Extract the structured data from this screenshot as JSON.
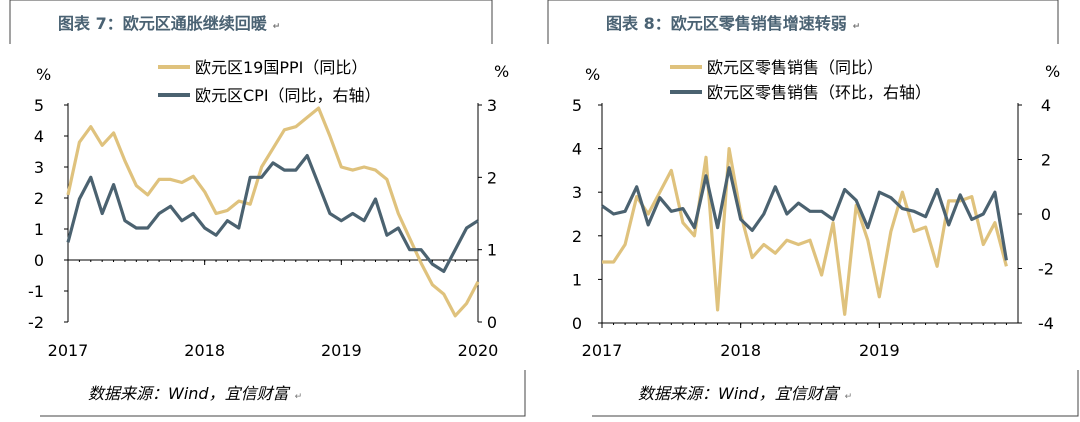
{
  "colors": {
    "gold": "#dfc27d",
    "slate": "#4b6270",
    "title": "#4a6273"
  },
  "edit_mark": "↵",
  "charts": [
    {
      "title": "图表 7：欧元区通胀继续回暖",
      "source": "数据来源：Wind，宜信财富",
      "left_unit": "%",
      "right_unit": "%",
      "legend": [
        "欧元区19国PPI（同比）",
        "欧元区CPI（同比，右轴）"
      ]
    },
    {
      "title": "图表 8：欧元区零售销售增速转弱",
      "source": "数据来源：Wind，宜信财富",
      "left_unit": "%",
      "right_unit": "%",
      "legend": [
        "欧元区零售销售（同比）",
        "欧元区零售销售（环比，右轴）"
      ]
    }
  ],
  "chart_data": [
    {
      "type": "line",
      "title": "图表 7：欧元区通胀继续回暖",
      "x_start": "2017-01",
      "x_ticks": [
        "2017",
        "2018",
        "2019",
        "2020"
      ],
      "y_left": {
        "label": "%",
        "lim": [
          -2,
          5
        ],
        "ticks": [
          -2,
          -1,
          0,
          1,
          2,
          3,
          4,
          5
        ]
      },
      "y_right": {
        "label": "%",
        "lim": [
          0,
          3
        ],
        "ticks": [
          0,
          1,
          2,
          3
        ]
      },
      "series": [
        {
          "name": "欧元区19国PPI（同比）",
          "axis": "left",
          "color": "#dfc27d",
          "values": [
            2.1,
            3.8,
            4.3,
            3.7,
            4.1,
            3.2,
            2.4,
            2.1,
            2.6,
            2.6,
            2.5,
            2.7,
            2.2,
            1.5,
            1.6,
            1.9,
            1.8,
            3.0,
            3.6,
            4.2,
            4.3,
            4.6,
            4.9,
            4.0,
            3.0,
            2.9,
            3.0,
            2.9,
            2.6,
            1.5,
            0.7,
            -0.1,
            -0.8,
            -1.1,
            -1.8,
            -1.4,
            -0.7
          ]
        },
        {
          "name": "欧元区CPI（同比，右轴）",
          "axis": "right",
          "color": "#4b6270",
          "values": [
            1.1,
            1.7,
            2.0,
            1.5,
            1.9,
            1.4,
            1.3,
            1.3,
            1.5,
            1.6,
            1.4,
            1.5,
            1.3,
            1.2,
            1.4,
            1.3,
            2.0,
            2.0,
            2.2,
            2.1,
            2.1,
            2.3,
            1.9,
            1.5,
            1.4,
            1.5,
            1.4,
            1.7,
            1.2,
            1.3,
            1.0,
            1.0,
            0.8,
            0.7,
            1.0,
            1.3,
            1.4
          ]
        }
      ]
    },
    {
      "type": "line",
      "title": "图表 8：欧元区零售销售增速转弱",
      "x_start": "2017-01",
      "x_ticks": [
        "2017",
        "2018",
        "2019"
      ],
      "y_left": {
        "label": "%",
        "lim": [
          0,
          5
        ],
        "ticks": [
          0,
          1,
          2,
          3,
          4,
          5
        ]
      },
      "y_right": {
        "label": "%",
        "lim": [
          -4,
          4
        ],
        "ticks": [
          -4,
          -2,
          0,
          2,
          4
        ]
      },
      "series": [
        {
          "name": "欧元区零售销售（同比）",
          "axis": "left",
          "color": "#dfc27d",
          "values": [
            1.4,
            1.4,
            1.8,
            2.9,
            2.5,
            3.0,
            3.5,
            2.3,
            2.0,
            3.8,
            0.3,
            4.0,
            2.5,
            1.5,
            1.8,
            1.6,
            1.9,
            1.8,
            1.9,
            1.1,
            2.3,
            0.2,
            2.7,
            1.9,
            0.6,
            2.1,
            3.0,
            2.1,
            2.2,
            1.3,
            2.8,
            2.8,
            2.9,
            1.8,
            2.3,
            1.3
          ]
        },
        {
          "name": "欧元区零售销售（环比，右轴）",
          "axis": "right",
          "color": "#4b6270",
          "values": [
            0.3,
            0.0,
            0.1,
            1.0,
            -0.4,
            0.6,
            0.1,
            0.2,
            -0.5,
            1.4,
            -0.5,
            1.7,
            -0.2,
            -0.6,
            0.0,
            1.0,
            0.0,
            0.4,
            0.1,
            0.1,
            -0.2,
            0.9,
            0.5,
            -0.5,
            0.8,
            0.6,
            0.2,
            0.1,
            -0.1,
            0.9,
            -0.4,
            0.7,
            -0.2,
            0.0,
            0.8,
            -1.7
          ]
        }
      ]
    }
  ]
}
